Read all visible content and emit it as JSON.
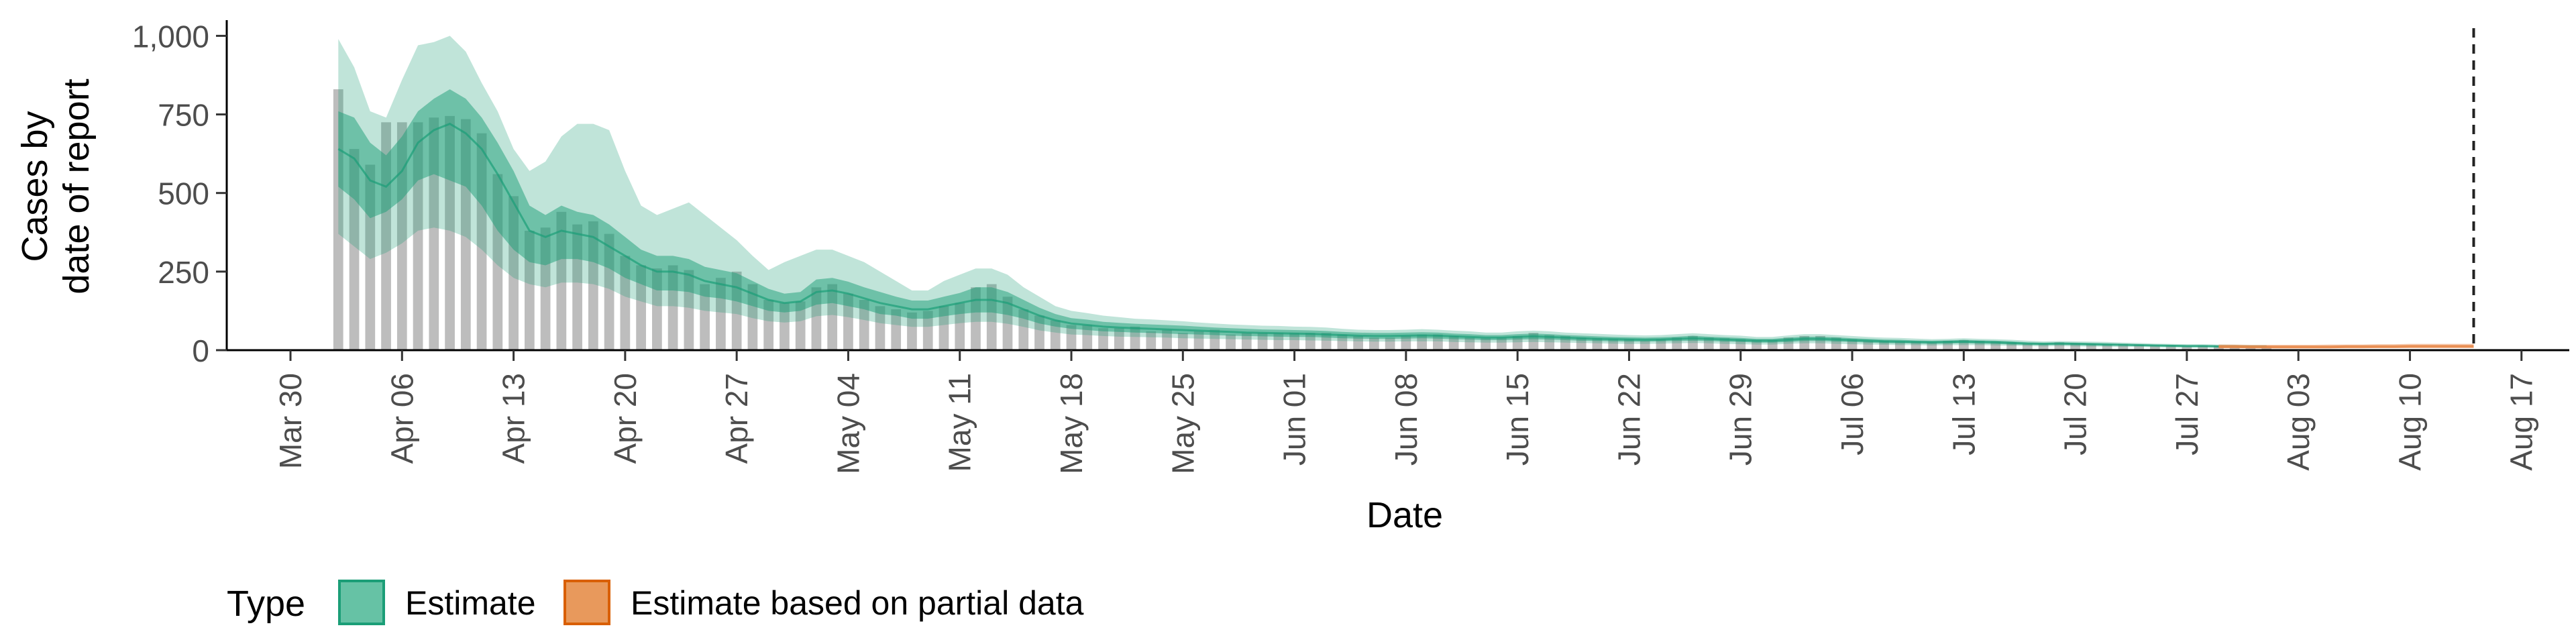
{
  "chart_data": {
    "type": "bar",
    "xlabel": "Date",
    "ylabel": [
      "Cases by",
      "date of report"
    ],
    "x_ticks": [
      "Mar 30",
      "Apr 06",
      "Apr 13",
      "Apr 20",
      "Apr 27",
      "May 04",
      "May 11",
      "May 18",
      "May 25",
      "Jun 01",
      "Jun 08",
      "Jun 15",
      "Jun 22",
      "Jun 29",
      "Jul 06",
      "Jul 13",
      "Jul 20",
      "Jul 27",
      "Aug 03",
      "Aug 10",
      "Aug 17"
    ],
    "x_tick_dates": [
      "2020-03-30",
      "2020-04-06",
      "2020-04-13",
      "2020-04-20",
      "2020-04-27",
      "2020-05-04",
      "2020-05-11",
      "2020-05-18",
      "2020-05-25",
      "2020-06-01",
      "2020-06-08",
      "2020-06-15",
      "2020-06-22",
      "2020-06-29",
      "2020-07-06",
      "2020-07-13",
      "2020-07-20",
      "2020-07-27",
      "2020-08-03",
      "2020-08-10",
      "2020-08-17"
    ],
    "xlim": [
      "2020-03-26",
      "2020-08-20"
    ],
    "y_ticks": [
      "0",
      "250",
      "500",
      "750",
      "1,000"
    ],
    "y_tick_values": [
      0,
      250,
      500,
      750,
      1000
    ],
    "ylim": [
      0,
      1050
    ],
    "grid": false,
    "vline_date": "2020-08-14",
    "legend": {
      "title": "Type",
      "position": "bottom",
      "items": [
        {
          "label": "Estimate",
          "fill": "#66c2a5",
          "stroke": "#1b9e77"
        },
        {
          "label": "Estimate based on partial data",
          "fill": "#e8995c",
          "stroke": "#d95f02"
        }
      ]
    },
    "colors": {
      "bars": "#bdbdbd",
      "estimate": "#1b9e77",
      "partial": "#e8884a"
    },
    "bars": {
      "start": "2020-04-02",
      "values": [
        830,
        640,
        590,
        725,
        725,
        725,
        740,
        745,
        735,
        690,
        560,
        490,
        380,
        390,
        440,
        400,
        410,
        370,
        300,
        270,
        260,
        270,
        255,
        210,
        230,
        250,
        210,
        160,
        150,
        155,
        200,
        210,
        180,
        160,
        140,
        130,
        120,
        125,
        140,
        150,
        200,
        210,
        170,
        130,
        110,
        95,
        80,
        80,
        70,
        70,
        75,
        60,
        65,
        55,
        60,
        65,
        50,
        55,
        55,
        55,
        55,
        55,
        55,
        50,
        45,
        40,
        40,
        45,
        50,
        50,
        45,
        40,
        38,
        40,
        45,
        55,
        48,
        45,
        40,
        38,
        35,
        35,
        30,
        35,
        40,
        45,
        40,
        38,
        35,
        32,
        32,
        40,
        45,
        45,
        40,
        35,
        30,
        30,
        28,
        28,
        25,
        30,
        32,
        30,
        28,
        25,
        20,
        20,
        25,
        22,
        20,
        18,
        20,
        18,
        15,
        15,
        12,
        15,
        15,
        15,
        12,
        12
      ]
    },
    "estimate": {
      "start": "2020-04-02",
      "median": [
        640,
        610,
        540,
        520,
        570,
        660,
        700,
        720,
        690,
        640,
        560,
        470,
        380,
        360,
        380,
        370,
        360,
        330,
        300,
        270,
        250,
        250,
        240,
        220,
        210,
        200,
        180,
        160,
        150,
        155,
        185,
        190,
        180,
        165,
        150,
        140,
        130,
        130,
        140,
        150,
        160,
        160,
        150,
        130,
        110,
        95,
        85,
        80,
        75,
        72,
        70,
        68,
        66,
        64,
        62,
        60,
        58,
        56,
        55,
        54,
        53,
        52,
        50,
        48,
        46,
        45,
        45,
        46,
        47,
        46,
        44,
        42,
        40,
        40,
        42,
        44,
        42,
        40,
        38,
        36,
        35,
        34,
        33,
        34,
        36,
        38,
        36,
        34,
        32,
        30,
        30,
        33,
        36,
        36,
        34,
        32,
        30,
        28,
        27,
        26,
        25,
        26,
        27,
        26,
        25,
        23,
        21,
        20,
        21,
        20,
        19,
        18,
        17,
        16,
        15,
        14,
        13,
        13,
        12,
        12,
        11,
        11
      ],
      "inner_low": [
        520,
        480,
        420,
        440,
        480,
        540,
        560,
        540,
        520,
        460,
        380,
        320,
        280,
        270,
        290,
        290,
        280,
        260,
        230,
        210,
        190,
        190,
        185,
        170,
        165,
        155,
        140,
        125,
        120,
        125,
        145,
        150,
        140,
        130,
        115,
        110,
        100,
        100,
        108,
        115,
        120,
        120,
        112,
        100,
        85,
        75,
        68,
        64,
        60,
        58,
        56,
        55,
        53,
        51,
        50,
        48,
        46,
        45,
        44,
        43,
        42,
        42,
        40,
        38,
        37,
        36,
        36,
        37,
        38,
        37,
        35,
        34,
        32,
        32,
        34,
        35,
        34,
        32,
        30,
        29,
        28,
        27,
        27,
        28,
        29,
        30,
        29,
        27,
        26,
        24,
        24,
        26,
        29,
        29,
        27,
        26,
        24,
        22,
        22,
        21,
        20,
        21,
        22,
        21,
        20,
        18,
        17,
        16,
        17,
        16,
        15,
        14,
        14,
        13,
        12,
        11,
        10,
        10,
        10,
        9,
        9,
        9
      ],
      "inner_high": [
        760,
        740,
        660,
        620,
        680,
        760,
        800,
        830,
        800,
        740,
        660,
        570,
        460,
        430,
        460,
        440,
        430,
        400,
        360,
        320,
        300,
        300,
        290,
        265,
        255,
        245,
        220,
        195,
        180,
        185,
        225,
        230,
        218,
        200,
        185,
        170,
        158,
        158,
        170,
        182,
        200,
        200,
        185,
        160,
        135,
        115,
        102,
        97,
        90,
        87,
        84,
        82,
        80,
        78,
        75,
        72,
        70,
        68,
        66,
        65,
        64,
        63,
        61,
        58,
        56,
        55,
        55,
        56,
        57,
        56,
        53,
        51,
        48,
        48,
        51,
        53,
        51,
        48,
        46,
        44,
        42,
        41,
        40,
        41,
        43,
        46,
        43,
        41,
        39,
        36,
        36,
        40,
        43,
        43,
        41,
        38,
        36,
        34,
        33,
        31,
        30,
        31,
        33,
        31,
        30,
        28,
        25,
        24,
        25,
        24,
        23,
        22,
        20,
        19,
        18,
        17,
        16,
        16,
        15,
        14,
        13,
        13
      ],
      "outer_low": [
        370,
        330,
        290,
        310,
        340,
        380,
        390,
        380,
        360,
        320,
        270,
        230,
        210,
        200,
        215,
        215,
        210,
        195,
        170,
        155,
        140,
        140,
        135,
        125,
        120,
        115,
        102,
        92,
        88,
        92,
        108,
        112,
        105,
        96,
        86,
        80,
        74,
        74,
        80,
        86,
        90,
        90,
        84,
        74,
        63,
        56,
        50,
        48,
        45,
        43,
        42,
        41,
        40,
        38,
        37,
        36,
        35,
        34,
        33,
        32,
        32,
        31,
        30,
        29,
        28,
        27,
        27,
        28,
        28,
        28,
        26,
        25,
        24,
        24,
        25,
        26,
        25,
        24,
        23,
        22,
        21,
        20,
        20,
        21,
        22,
        23,
        22,
        20,
        19,
        18,
        18,
        20,
        22,
        22,
        20,
        19,
        18,
        17,
        16,
        16,
        15,
        16,
        16,
        16,
        15,
        14,
        13,
        12,
        13,
        12,
        11,
        11,
        10,
        10,
        9,
        8,
        8,
        8,
        7,
        7,
        7,
        7
      ],
      "outer_high": [
        990,
        900,
        760,
        740,
        860,
        970,
        980,
        1000,
        950,
        850,
        760,
        640,
        570,
        600,
        680,
        720,
        720,
        700,
        570,
        460,
        430,
        450,
        470,
        430,
        390,
        350,
        300,
        255,
        280,
        300,
        320,
        320,
        300,
        280,
        250,
        220,
        190,
        190,
        220,
        240,
        260,
        260,
        240,
        200,
        170,
        140,
        125,
        118,
        110,
        105,
        100,
        98,
        95,
        92,
        88,
        85,
        82,
        80,
        78,
        77,
        75,
        74,
        72,
        68,
        65,
        64,
        64,
        65,
        67,
        65,
        62,
        60,
        56,
        56,
        60,
        62,
        60,
        56,
        54,
        52,
        50,
        48,
        47,
        48,
        51,
        54,
        51,
        48,
        46,
        42,
        42,
        47,
        51,
        51,
        48,
        45,
        42,
        40,
        39,
        37,
        35,
        36,
        38,
        36,
        35,
        33,
        30,
        28,
        29,
        28,
        27,
        26,
        24,
        23,
        21,
        20,
        19,
        19,
        18,
        17,
        16,
        16
      ]
    },
    "partial": {
      "start": "2020-07-29",
      "median": [
        11,
        11,
        10,
        10,
        10,
        10,
        10,
        10,
        11,
        11,
        11,
        11,
        12,
        12,
        12,
        12,
        12
      ],
      "low": [
        6,
        6,
        6,
        6,
        6,
        6,
        6,
        6,
        6,
        6,
        7,
        7,
        7,
        7,
        7,
        7,
        7
      ],
      "high": [
        18,
        18,
        17,
        17,
        17,
        17,
        17,
        18,
        18,
        18,
        19,
        19,
        20,
        20,
        20,
        20,
        20
      ]
    }
  }
}
